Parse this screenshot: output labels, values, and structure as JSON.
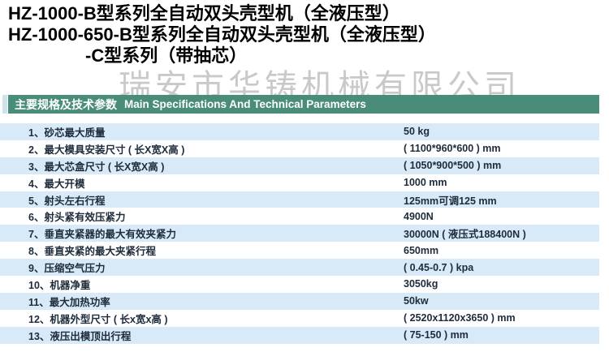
{
  "titles": {
    "line1": "HZ-1000-B型系列全自动双头壳型机（全液压型）",
    "line2": "HZ-1000-650-B型系列全自动双头壳型机（全液压型）",
    "line3": "-C型系列（带抽芯）"
  },
  "watermark": "瑞安市华铸机械有限公司",
  "section_header": {
    "title_zh": "主要规格及技术参数",
    "title_en": "Main Specifications And Technical Parameters"
  },
  "colors": {
    "header_bar_bg": "#4a8c7a",
    "header_bar_text": "#ffffff",
    "row_alt_bg": "#d8eaf8",
    "row_bg": "#ffffff",
    "body_text": "#1e2b3a",
    "watermark_text": "#c9c9c9",
    "left_strip": "#cde4ef"
  },
  "specs": {
    "rows": [
      {
        "no": "1、",
        "label": "砂芯最大质量",
        "value": "50 kg"
      },
      {
        "no": "2、",
        "label": "最大模具安装尺寸 ( 长X宽X高 )",
        "value": "( 1100*960*600 ) mm"
      },
      {
        "no": "3、",
        "label": "最大芯盒尺寸 ( 长X宽X高 )",
        "value": "( 1050*900*500 ) mm"
      },
      {
        "no": "4、",
        "label": "最大开模",
        "value": "1000 mm"
      },
      {
        "no": "5、",
        "label": "射头左右行程",
        "value": "125mm可调125 mm"
      },
      {
        "no": "6、",
        "label": "射头紧有效压紧力",
        "value": "4900N"
      },
      {
        "no": "7、",
        "label": "垂直夹紧器的最大有效夹紧力",
        "value": "30000N ( 液压式188400N )"
      },
      {
        "no": "8、",
        "label": "垂直夹紧的最大夹紧行程",
        "value": "650mm"
      },
      {
        "no": "9、",
        "label": "压缩空气压力",
        "value": "( 0.45-0.7 ) kpa"
      },
      {
        "no": "10、",
        "label": "机器净重",
        "value": "3050kg"
      },
      {
        "no": "11、",
        "label": "最大加热功率",
        "value": "50kw"
      },
      {
        "no": "12、",
        "label": "机器外型尺寸 ( 长x宽x高 )",
        "value": "( 2520x1120x3650 ) mm"
      },
      {
        "no": "13、",
        "label": "液压出模顶出行程",
        "value": "( 75-150 ) mm"
      }
    ]
  }
}
